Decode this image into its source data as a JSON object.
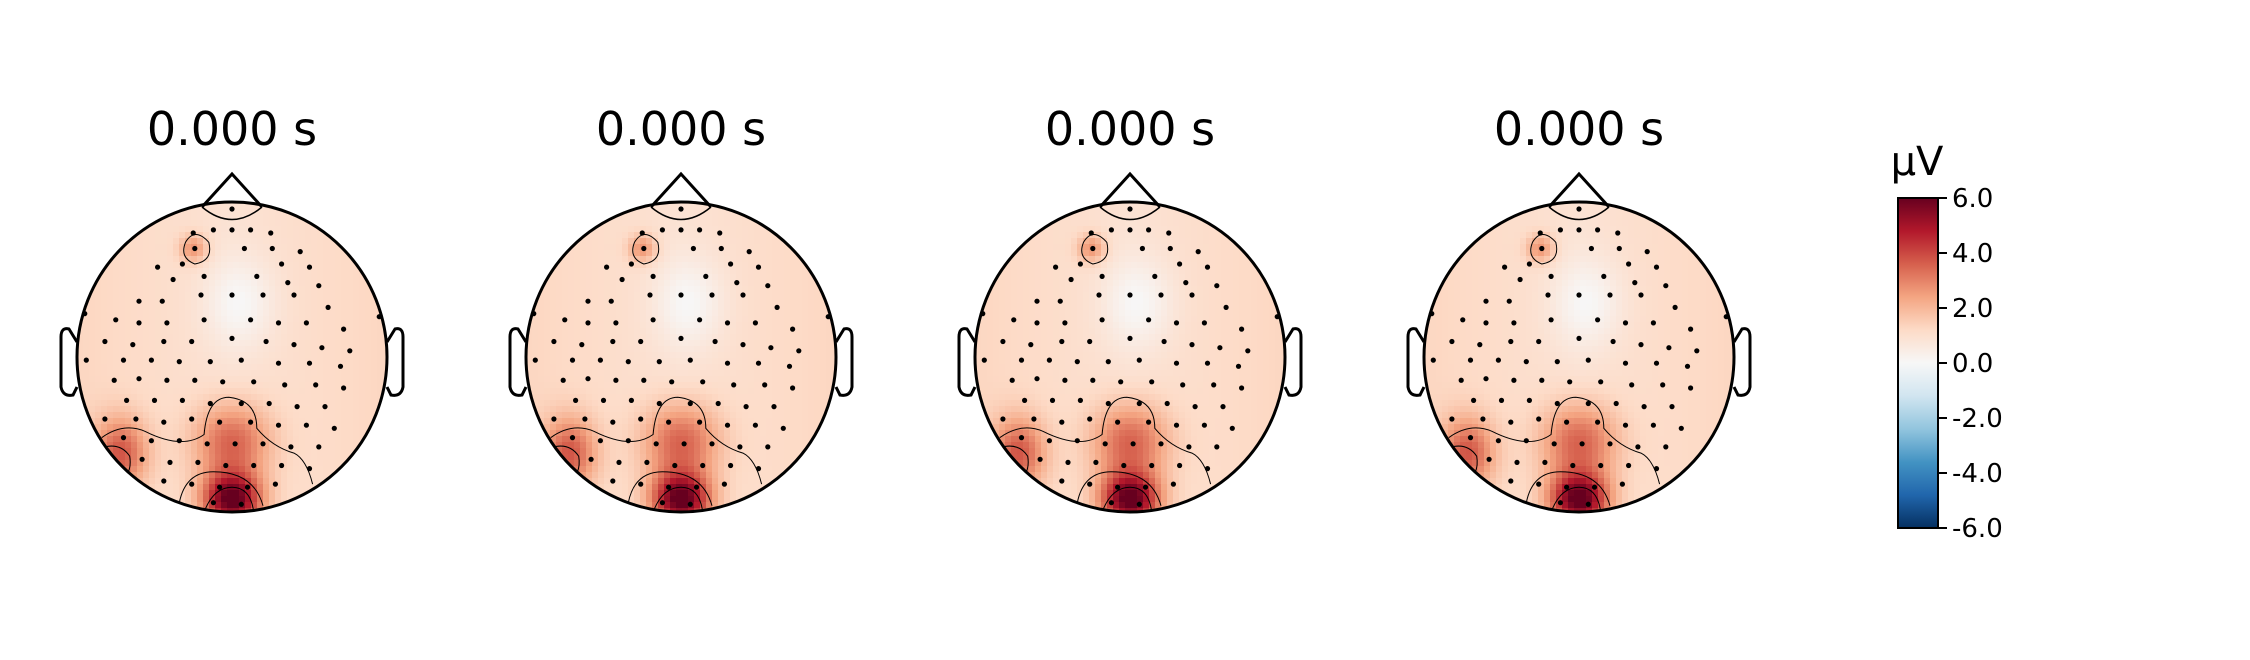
{
  "chart_data": {
    "type": "heatmap",
    "kind": "eeg-topomap",
    "unit": "µV",
    "colormap": "RdBu_r",
    "colorbar": {
      "label": "µV",
      "vlim": [
        -6.0,
        6.0
      ],
      "ticks": [
        "6.0",
        "4.0",
        "2.0",
        "0.0",
        "-2.0",
        "-4.0",
        "-6.0"
      ],
      "tick_values": [
        6.0,
        4.0,
        2.0,
        0.0,
        -2.0,
        -4.0,
        -6.0
      ]
    },
    "maps": [
      {
        "title": "0.000 s",
        "time_s": 0.0
      },
      {
        "title": "0.000 s",
        "time_s": 0.0
      },
      {
        "title": "0.000 s",
        "time_s": 0.0
      },
      {
        "title": "0.000 s",
        "time_s": 0.0
      }
    ],
    "field_features": [
      {
        "region": "occipital midline (bottom center)",
        "peak_uv": 6.0
      },
      {
        "region": "left parieto-occipital",
        "peak_uv": 3.5
      },
      {
        "region": "left frontal (single electrode)",
        "peak_uv": 2.5
      },
      {
        "region": "rest of scalp",
        "level_uv": 1.0
      }
    ],
    "contour_levels_uv": [
      2.0,
      4.0
    ],
    "sensors_shown": true,
    "grid": false
  }
}
